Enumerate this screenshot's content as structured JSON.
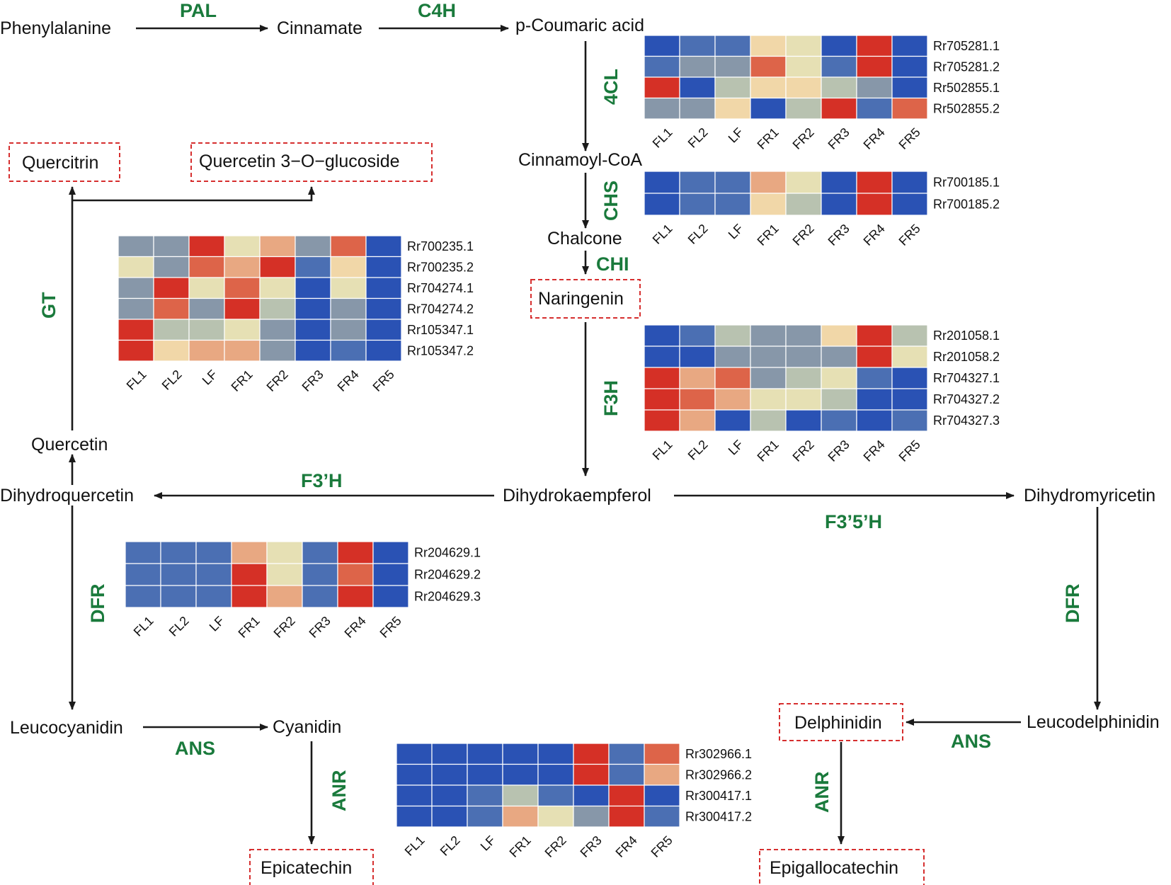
{
  "colors": {
    "palette": [
      "#2a52b4",
      "#4b6fb3",
      "#8797a9",
      "#b8c2b0",
      "#e6e0b4",
      "#f1d7a8",
      "#e8a882",
      "#dd6449",
      "#d53026"
    ],
    "enzyme_text": "#1a7a3c",
    "metabolite_box": "#d62f2f",
    "cell_border": "#ffffff"
  },
  "metabolites": {
    "phenylalanine": "Phenylalanine",
    "cinnamate": "Cinnamate",
    "coumaric": "p-Coumaric acid",
    "cinnamoylcoa": "Cinnamoyl-CoA",
    "chalcone": "Chalcone",
    "naringenin": "Naringenin",
    "quercitrin": "Quercitrin",
    "quercetin_glucoside": "Quercetin 3−O−glucoside",
    "quercetin": "Quercetin",
    "dihydroquercetin": "Dihydroquercetin",
    "dihydrokaempferol": "Dihydrokaempferol",
    "dihydromyricetin": "Dihydromyricetin",
    "leucocyanidin": "Leucocyanidin",
    "cyanidin": "Cyanidin",
    "epicatechin": "Epicatechin",
    "delphinidin": "Delphinidin",
    "leucodelphinidin": "Leucodelphinidin",
    "epigallocatechin": "Epigallocatechin"
  },
  "enzymes": {
    "pal": "PAL",
    "c4h": "C4H",
    "fourcl": "4CL",
    "chs": "CHS",
    "chi": "CHI",
    "f3h": "F3H",
    "gt": "GT",
    "f3ph": "F3’H",
    "f35h": "F3’5’H",
    "dfr_left": "DFR",
    "dfr_right": "DFR",
    "ans_left": "ANS",
    "ans_right": "ANS",
    "anr_left": "ANR",
    "anr_right": "ANR"
  },
  "heatmaps": [
    {
      "id": "4cl",
      "columns": [
        "FL1",
        "FL2",
        "LF",
        "FR1",
        "FR2",
        "FR3",
        "FR4",
        "FR5"
      ],
      "rows": [
        {
          "gene": "Rr705281.1",
          "levels": [
            0,
            1,
            1,
            5,
            4,
            0,
            8,
            0
          ]
        },
        {
          "gene": "Rr705281.2",
          "levels": [
            1,
            2,
            2,
            7,
            4,
            1,
            8,
            0
          ]
        },
        {
          "gene": "Rr502855.1",
          "levels": [
            8,
            0,
            3,
            5,
            5,
            3,
            2,
            0
          ]
        },
        {
          "gene": "Rr502855.2",
          "levels": [
            2,
            2,
            5,
            0,
            3,
            8,
            1,
            7
          ]
        }
      ]
    },
    {
      "id": "chs",
      "columns": [
        "FL1",
        "FL2",
        "LF",
        "FR1",
        "FR2",
        "FR3",
        "FR4",
        "FR5"
      ],
      "rows": [
        {
          "gene": "Rr700185.1",
          "levels": [
            0,
            1,
            1,
            6,
            4,
            0,
            8,
            0
          ]
        },
        {
          "gene": "Rr700185.2",
          "levels": [
            0,
            1,
            1,
            5,
            3,
            0,
            8,
            0
          ]
        }
      ]
    },
    {
      "id": "f3h",
      "columns": [
        "FL1",
        "FL2",
        "LF",
        "FR1",
        "FR2",
        "FR3",
        "FR4",
        "FR5"
      ],
      "rows": [
        {
          "gene": "Rr201058.1",
          "levels": [
            0,
            1,
            3,
            2,
            2,
            5,
            8,
            3
          ]
        },
        {
          "gene": "Rr201058.2",
          "levels": [
            0,
            0,
            2,
            2,
            2,
            2,
            8,
            4
          ]
        },
        {
          "gene": "Rr704327.1",
          "levels": [
            8,
            6,
            7,
            2,
            3,
            4,
            1,
            0
          ]
        },
        {
          "gene": "Rr704327.2",
          "levels": [
            8,
            7,
            6,
            4,
            4,
            3,
            0,
            0
          ]
        },
        {
          "gene": "Rr704327.3",
          "levels": [
            8,
            6,
            0,
            3,
            0,
            1,
            0,
            1
          ]
        }
      ]
    },
    {
      "id": "gt",
      "columns": [
        "FL1",
        "FL2",
        "LF",
        "FR1",
        "FR2",
        "FR3",
        "FR4",
        "FR5"
      ],
      "rows": [
        {
          "gene": "Rr700235.1",
          "levels": [
            2,
            2,
            8,
            4,
            6,
            2,
            7,
            0
          ]
        },
        {
          "gene": "Rr700235.2",
          "levels": [
            4,
            2,
            7,
            6,
            8,
            1,
            5,
            0
          ]
        },
        {
          "gene": "Rr704274.1",
          "levels": [
            2,
            8,
            4,
            7,
            4,
            0,
            4,
            0
          ]
        },
        {
          "gene": "Rr704274.2",
          "levels": [
            2,
            7,
            2,
            8,
            3,
            0,
            2,
            0
          ]
        },
        {
          "gene": "Rr105347.1",
          "levels": [
            8,
            3,
            3,
            4,
            2,
            0,
            2,
            0
          ]
        },
        {
          "gene": "Rr105347.2",
          "levels": [
            8,
            5,
            6,
            6,
            2,
            0,
            1,
            0
          ]
        }
      ]
    },
    {
      "id": "dfr",
      "columns": [
        "FL1",
        "FL2",
        "LF",
        "FR1",
        "FR2",
        "FR3",
        "FR4",
        "FR5"
      ],
      "rows": [
        {
          "gene": "Rr204629.1",
          "levels": [
            1,
            1,
            1,
            6,
            4,
            1,
            8,
            0
          ]
        },
        {
          "gene": "Rr204629.2",
          "levels": [
            1,
            1,
            1,
            8,
            4,
            1,
            7,
            0
          ]
        },
        {
          "gene": "Rr204629.3",
          "levels": [
            1,
            1,
            1,
            8,
            6,
            1,
            8,
            0
          ]
        }
      ]
    },
    {
      "id": "anr",
      "columns": [
        "FL1",
        "FL2",
        "LF",
        "FR1",
        "FR2",
        "FR3",
        "FR4",
        "FR5"
      ],
      "rows": [
        {
          "gene": "Rr302966.1",
          "levels": [
            0,
            0,
            0,
            0,
            0,
            8,
            1,
            7
          ]
        },
        {
          "gene": "Rr302966.2",
          "levels": [
            0,
            0,
            0,
            0,
            0,
            8,
            1,
            6
          ]
        },
        {
          "gene": "Rr300417.1",
          "levels": [
            0,
            0,
            1,
            3,
            1,
            0,
            8,
            0
          ]
        },
        {
          "gene": "Rr300417.2",
          "levels": [
            0,
            0,
            1,
            6,
            4,
            2,
            8,
            1
          ]
        }
      ]
    }
  ]
}
